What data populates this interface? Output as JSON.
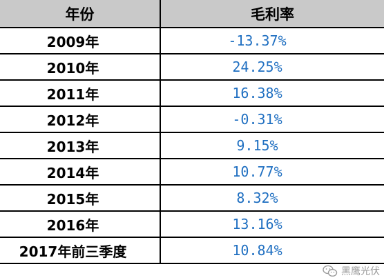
{
  "table": {
    "headers": [
      "年份",
      "毛利率"
    ],
    "rows": [
      {
        "year": "2009年",
        "margin": "-13.37%"
      },
      {
        "year": "2010年",
        "margin": "24.25%"
      },
      {
        "year": "2011年",
        "margin": "16.38%"
      },
      {
        "year": "2012年",
        "margin": "-0.31%"
      },
      {
        "year": "2013年",
        "margin": "9.15%"
      },
      {
        "year": "2014年",
        "margin": "10.77%"
      },
      {
        "year": "2015年",
        "margin": "8.32%"
      },
      {
        "year": "2016年",
        "margin": "13.16%"
      },
      {
        "year": "2017年前三季度",
        "margin": "10.84%"
      }
    ]
  },
  "watermark": {
    "icon": "wechat-icon",
    "text": "黑鹰光伏"
  },
  "colors": {
    "header_bg": "#c9c9c9",
    "value_text": "#1f6fc1",
    "border": "#000000"
  }
}
